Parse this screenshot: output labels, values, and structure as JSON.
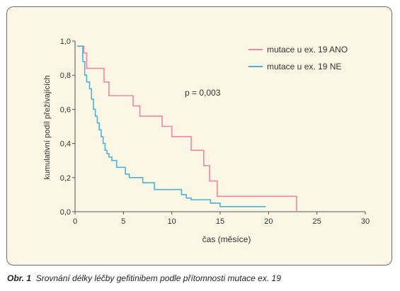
{
  "colors": {
    "ano": "#ee86a6",
    "ne": "#4fb2dc",
    "axis": "#555555",
    "panel_bg": "#fcf6e4",
    "panel_border": "#6e6e6e"
  },
  "caption": {
    "label": "Obr. 1",
    "text": "Srovnání délky léčby gefitinibem podle přítomnosti mutace ex. 19"
  },
  "chart_data": {
    "type": "line",
    "step": true,
    "xlabel": "čas (měsíce)",
    "ylabel": "kumulativní podíl přežívajících",
    "xlim": [
      0,
      30
    ],
    "ylim": [
      0,
      1
    ],
    "xticks": [
      0,
      5,
      10,
      15,
      20,
      25,
      30
    ],
    "yticks": [
      0,
      0.2,
      0.4,
      0.6,
      0.8,
      1.0
    ],
    "xtick_labels": [
      "0",
      "5",
      "10",
      "15",
      "20",
      "25",
      "30"
    ],
    "ytick_labels": [
      "0,0",
      "0,2",
      "0,4",
      "0,6",
      "0,8",
      "1,0"
    ],
    "grid": false,
    "legend_position": "top-right",
    "annotation": "p = 0,003",
    "series": [
      {
        "name": "mutace u ex. 19 ANO",
        "color": "#ee86a6",
        "x": [
          0.3,
          0.9,
          1.2,
          3.0,
          3.5,
          6.0,
          6.7,
          9.0,
          10.0,
          12.0,
          13.3,
          13.9,
          14.7,
          22.9,
          22.9
        ],
        "y": [
          0.97,
          0.93,
          0.84,
          0.76,
          0.68,
          0.62,
          0.56,
          0.5,
          0.44,
          0.36,
          0.27,
          0.18,
          0.09,
          0.09,
          0.0
        ]
      },
      {
        "name": "mutace u ex. 19 NE",
        "color": "#4fb2dc",
        "x": [
          0.2,
          0.8,
          1.0,
          1.2,
          1.5,
          1.7,
          1.9,
          2.1,
          2.3,
          2.5,
          2.7,
          2.9,
          3.1,
          3.3,
          3.5,
          3.8,
          4.3,
          5.2,
          5.6,
          7.0,
          8.2,
          11.0,
          11.5,
          12.0,
          14.0,
          15.0,
          19.7
        ],
        "y": [
          0.97,
          0.88,
          0.8,
          0.76,
          0.72,
          0.66,
          0.6,
          0.56,
          0.52,
          0.48,
          0.44,
          0.4,
          0.36,
          0.34,
          0.32,
          0.3,
          0.26,
          0.22,
          0.2,
          0.17,
          0.13,
          0.1,
          0.08,
          0.07,
          0.05,
          0.03,
          0.03
        ]
      }
    ]
  }
}
